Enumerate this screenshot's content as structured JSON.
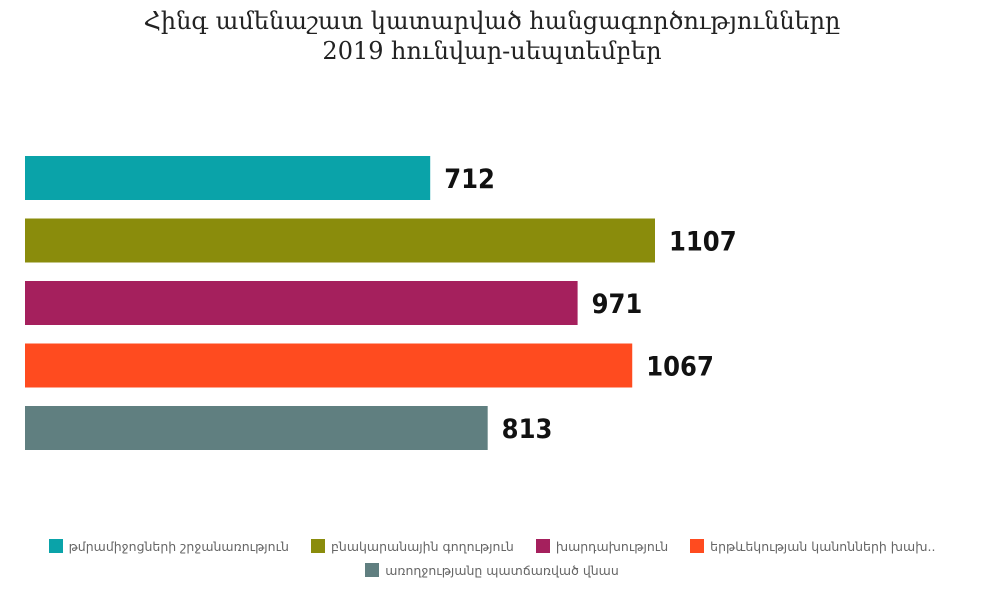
{
  "chart_data": {
    "type": "bar",
    "orientation": "horizontal",
    "title": "Հինգ ամենաշատ կատարված հանցագործությունները",
    "subtitle": "2019 հունվար-սեպտեմբեր",
    "categories": [
      "թմրամիջոցների շրջանառություն",
      "բնակարանային գողություն",
      "խարդախություն",
      "երթևեկության կանոնների խախ..",
      "առողջությանը պատճառված վնաս"
    ],
    "values": [
      712,
      1107,
      971,
      1067,
      813
    ],
    "colors": [
      "#0aa3a9",
      "#8a8c0c",
      "#a5205d",
      "#ff4b1f",
      "#607f80"
    ],
    "data_labels": [
      "712",
      "1107",
      "971",
      "1067",
      "813"
    ],
    "xlim": [
      0,
      1107
    ],
    "grid": false,
    "legend_position": "bottom"
  }
}
